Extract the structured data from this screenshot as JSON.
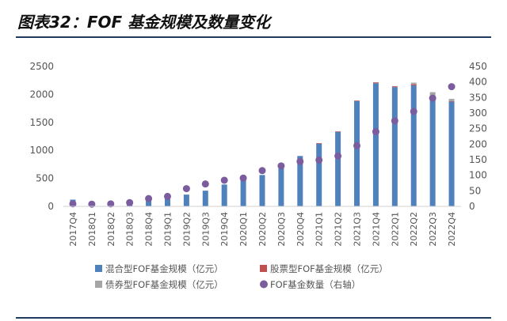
{
  "title": "图表32：FOF 基金规模及数量变化",
  "chart_data": {
    "type": "bar",
    "stacked": true,
    "categories": [
      "2017Q4",
      "2018Q1",
      "2018Q2",
      "2018Q3",
      "2018Q4",
      "2019Q1",
      "2019Q2",
      "2019Q3",
      "2019Q4",
      "2020Q1",
      "2020Q2",
      "2020Q3",
      "2020Q4",
      "2021Q1",
      "2021Q2",
      "2021Q3",
      "2021Q4",
      "2022Q1",
      "2022Q2",
      "2022Q3",
      "2022Q4"
    ],
    "series": [
      {
        "name": "混合型FOF基金规模（亿元）",
        "type": "bar",
        "axis": "left",
        "color": "#4f81bd",
        "values": [
          120,
          80,
          35,
          50,
          110,
          140,
          210,
          280,
          390,
          480,
          560,
          700,
          900,
          1120,
          1330,
          1880,
          2200,
          2130,
          2160,
          1950,
          1870
        ]
      },
      {
        "name": "股票型FOF基金规模（亿元）",
        "type": "bar",
        "axis": "left",
        "color": "#c0504d",
        "values": [
          0,
          0,
          0,
          0,
          0,
          0,
          0,
          0,
          0,
          0,
          0,
          0,
          0,
          10,
          10,
          10,
          15,
          15,
          20,
          10,
          10
        ]
      },
      {
        "name": "债券型FOF基金规模（亿元）",
        "type": "bar",
        "axis": "left",
        "color": "#a5a5a5",
        "values": [
          0,
          0,
          0,
          0,
          0,
          0,
          0,
          0,
          0,
          0,
          0,
          0,
          0,
          0,
          0,
          0,
          0,
          0,
          30,
          80,
          40
        ]
      },
      {
        "name": "FOF基金数量（右轴）",
        "type": "scatter",
        "axis": "right",
        "color": "#7b5c9e",
        "values": [
          8,
          7,
          8,
          12,
          25,
          32,
          57,
          72,
          84,
          91,
          115,
          130,
          144,
          149,
          162,
          195,
          240,
          275,
          305,
          348,
          385
        ]
      }
    ],
    "yleft": {
      "min": 0,
      "max": 2500,
      "ticks": [
        "0",
        "500",
        "1000",
        "1500",
        "2000",
        "2500"
      ]
    },
    "yright": {
      "min": 0,
      "max": 450,
      "ticks": [
        "0",
        "50",
        "100",
        "150",
        "200",
        "250",
        "300",
        "350",
        "400",
        "450"
      ]
    },
    "legend_position": "bottom"
  }
}
